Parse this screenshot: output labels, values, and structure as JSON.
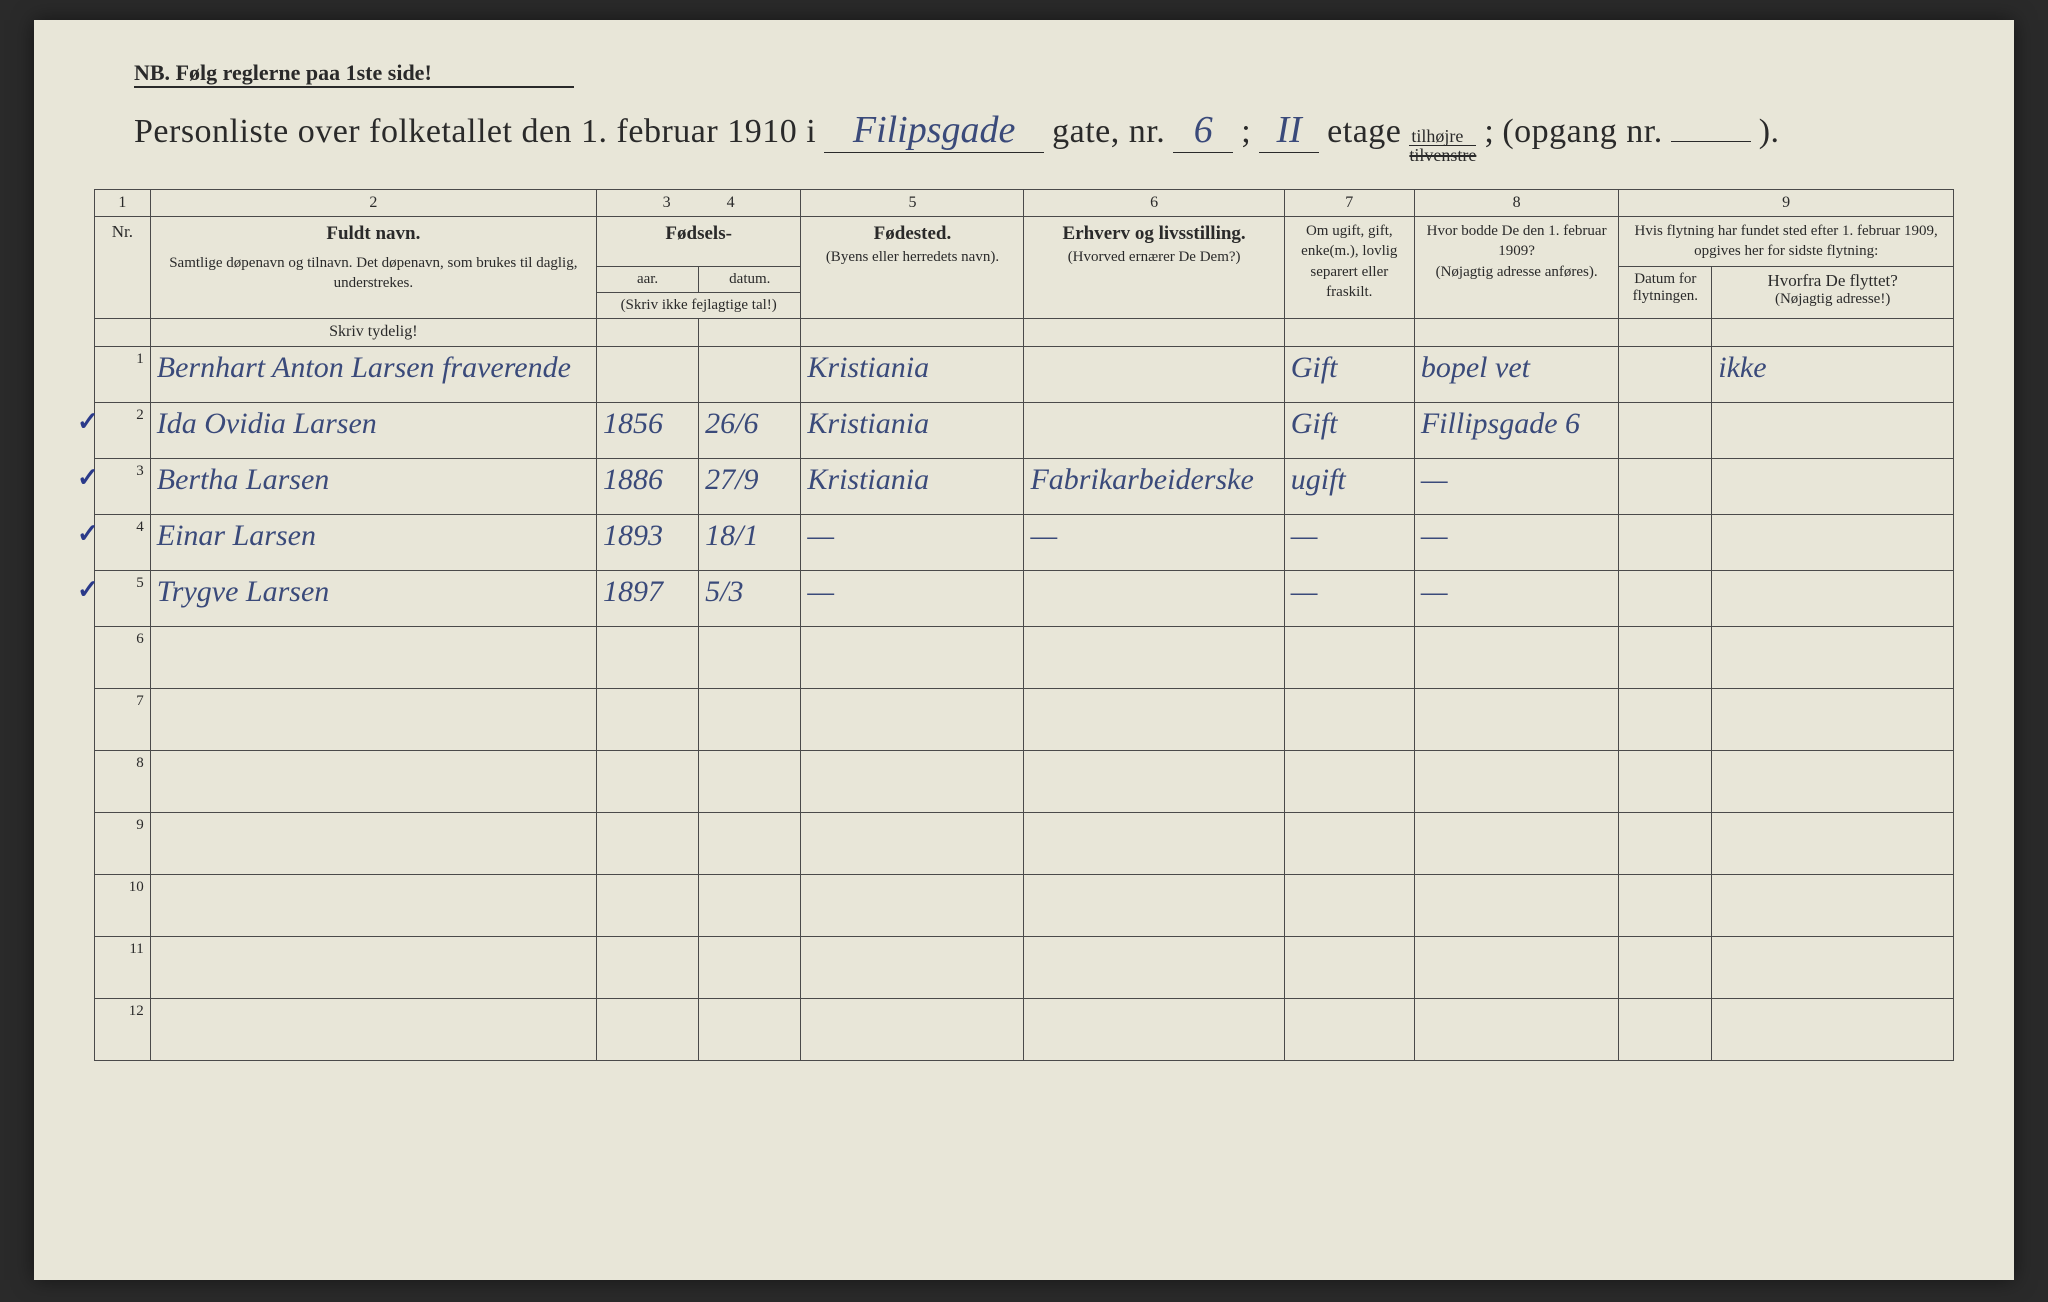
{
  "page": {
    "background_color": "#e8e6d8",
    "ink_color": "#2a2a2a",
    "handwriting_color": "#3a4a7a",
    "border_color": "#4a4a4a"
  },
  "nb": {
    "prefix": "NB.",
    "text": "Følg reglerne paa 1ste side!"
  },
  "title": {
    "prefix": "Personliste over folketallet den 1. februar 1910 i",
    "street_hw": "Filipsgade",
    "gate_label": "gate, nr.",
    "gate_nr_hw": "6",
    "semicolon": ";",
    "etage_hw": "II",
    "etage_label": "etage",
    "side_top": "tilhøjre",
    "side_bottom": "tilvenstre",
    "opgang_label": "(opgang nr.",
    "opgang_close": ")."
  },
  "columns": {
    "numbers": [
      "1",
      "2",
      "3",
      "4",
      "5",
      "6",
      "7",
      "8",
      "9"
    ],
    "nr": "Nr.",
    "name_main": "Fuldt navn.",
    "name_sub": "Samtlige døpenavn og tilnavn. Det døpenavn, som brukes til daglig, understrekes.",
    "birth_group": "Fødsels-",
    "birth_year": "aar.",
    "birth_date": "datum.",
    "birth_note": "(Skriv ikke fejlagtige tal!)",
    "birthplace_main": "Fødested.",
    "birthplace_sub": "(Byens eller herredets navn).",
    "occupation_main": "Erhverv og livsstilling.",
    "occupation_sub": "(Hvorved ernærer De Dem?)",
    "marital": "Om ugift, gift, enke(m.), lovlig separert eller fraskilt.",
    "prev_addr_main": "Hvor bodde De den 1. februar 1909?",
    "prev_addr_sub": "(Nøjagtig adresse anføres).",
    "move_group": "Hvis flytning har fundet sted efter 1. februar 1909, opgives her for sidste flytning:",
    "move_date": "Datum for flytningen.",
    "move_from_main": "Hvorfra De flyttet?",
    "move_from_sub": "(Nøjagtig adresse!)"
  },
  "hint": "Skriv tydelig!",
  "rows": [
    {
      "n": "1",
      "tick": false,
      "name": "Bernhart Anton Larsen fraverende",
      "year": "",
      "date": "",
      "birthplace": "Kristiania",
      "occupation": "",
      "marital": "Gift",
      "prev": "bopel vet",
      "movedate": "",
      "movefrom": "ikke"
    },
    {
      "n": "2",
      "tick": true,
      "name": "Ida Ovidia Larsen",
      "year": "1856",
      "date": "26/6",
      "birthplace": "Kristiania",
      "occupation": "",
      "marital": "Gift",
      "prev": "Fillipsgade 6",
      "movedate": "",
      "movefrom": ""
    },
    {
      "n": "3",
      "tick": true,
      "name": "Bertha Larsen",
      "year": "1886",
      "date": "27/9",
      "birthplace": "Kristiania",
      "occupation": "Fabrikarbeiderske",
      "marital": "ugift",
      "prev": "—",
      "movedate": "",
      "movefrom": ""
    },
    {
      "n": "4",
      "tick": true,
      "name": "Einar Larsen",
      "year": "1893",
      "date": "18/1",
      "birthplace": "—",
      "occupation": "—",
      "marital": "—",
      "prev": "—",
      "movedate": "",
      "movefrom": ""
    },
    {
      "n": "5",
      "tick": true,
      "name": "Trygve Larsen",
      "year": "1897",
      "date": "5/3",
      "birthplace": "—",
      "occupation": "",
      "marital": "—",
      "prev": "—",
      "movedate": "",
      "movefrom": ""
    }
  ],
  "empty_rows": [
    "6",
    "7",
    "8",
    "9",
    "10",
    "11",
    "12"
  ]
}
